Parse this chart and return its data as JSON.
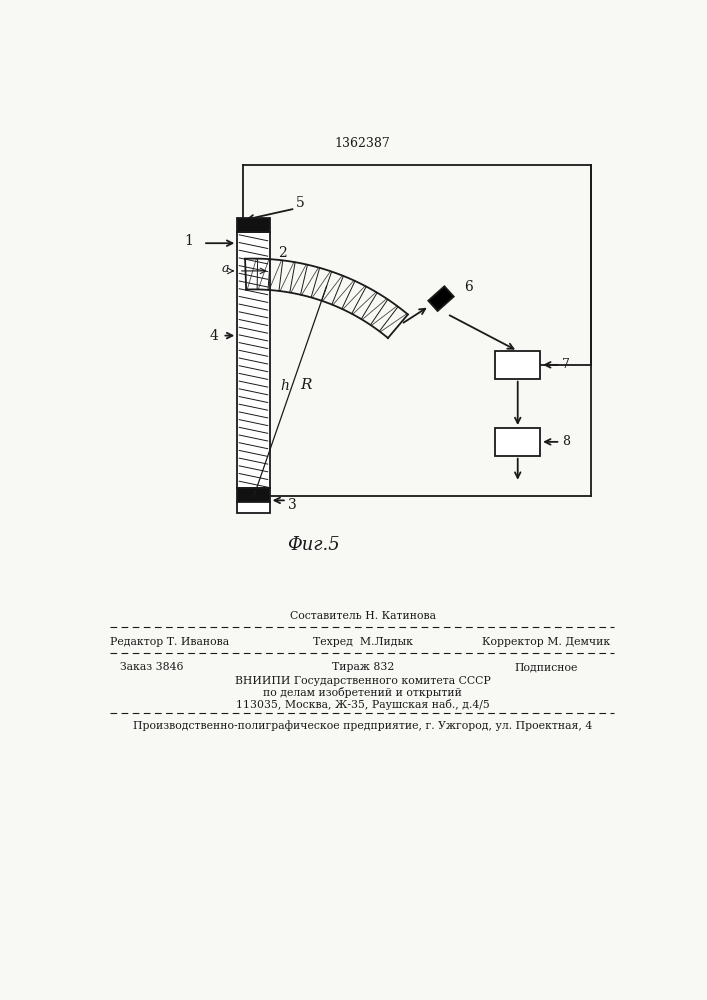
{
  "patent_number": "1362387",
  "fig_label": "Φиг.5",
  "background": "#f8f8f5",
  "line_color": "#1a1a1a",
  "footer": {
    "sostavitel": "Составитель Н. Катинова",
    "redaktor": "Редактор Т. Иванова",
    "tehred": "Техред  М.Лидык",
    "korrektor": "Корректор М. Демчик",
    "zakaz": "Заказ 3846",
    "tirazh": "Тираж 832",
    "podpisnoe": "Подписное",
    "vniipи": "ВНИИПИ Государственного комитета СССР",
    "po_delam": "по делам изобретений и открытий",
    "address": "113035, Москва, Ж-35, Раушская наб., д.4/5",
    "proizv": "Производственно-полиграфическое предприятие, г. Ужгород, ул. Проектная, 4"
  }
}
